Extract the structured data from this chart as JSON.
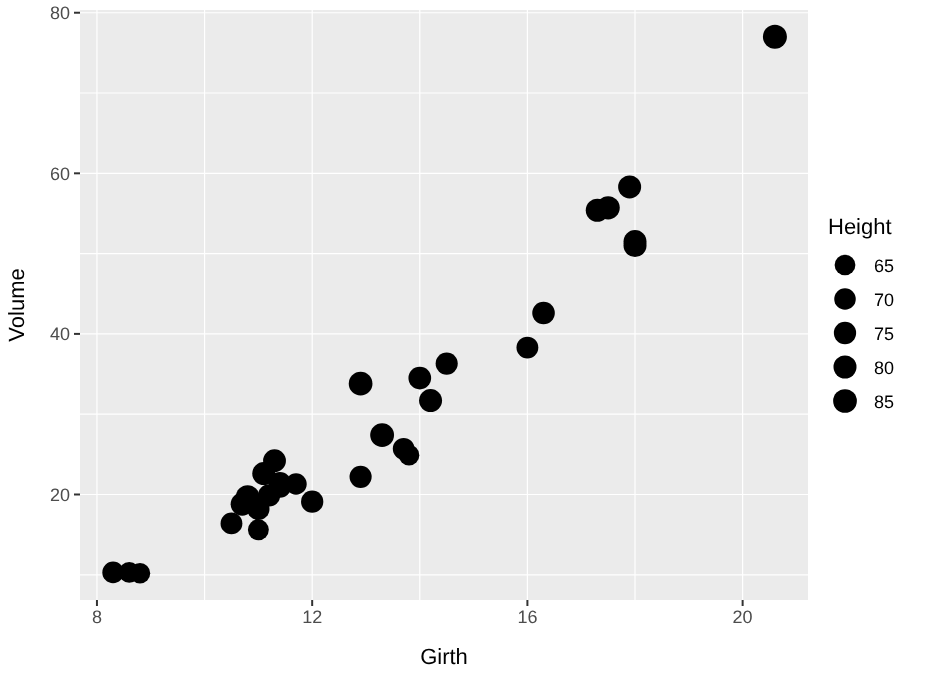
{
  "chart_data": {
    "type": "bubble",
    "xlabel": "Girth",
    "ylabel": "Volume",
    "legend_title": "Height",
    "grid": true,
    "marker": "circle",
    "xlim": [
      7.685,
      21.215
    ],
    "xticks": [
      8,
      12,
      16,
      20
    ],
    "ylim": [
      6.86,
      80.34
    ],
    "yticks": [
      20,
      40,
      60,
      80
    ],
    "size_legend": [
      65,
      70,
      75,
      80,
      85
    ],
    "series": [
      {
        "color": "#000000",
        "x": [
          8.3,
          8.6,
          8.8,
          10.5,
          10.7,
          10.8,
          11.0,
          11.0,
          11.1,
          11.2,
          11.3,
          11.4,
          11.4,
          11.7,
          12.0,
          12.9,
          12.9,
          13.3,
          13.7,
          13.8,
          14.0,
          14.2,
          14.5,
          16.0,
          16.3,
          17.3,
          17.5,
          17.9,
          18.0,
          18.0,
          20.6
        ],
        "values": [
          10.3,
          10.3,
          10.2,
          16.4,
          18.8,
          19.7,
          15.6,
          18.2,
          22.6,
          19.9,
          24.2,
          21.0,
          21.4,
          21.3,
          19.1,
          22.2,
          33.8,
          27.4,
          25.7,
          24.9,
          34.5,
          31.7,
          36.3,
          38.3,
          42.6,
          55.4,
          55.7,
          58.3,
          51.5,
          51.0,
          77.0
        ],
        "sizes": [
          70,
          65,
          63,
          72,
          81,
          83,
          66,
          75,
          80,
          75,
          79,
          76,
          76,
          69,
          75,
          74,
          85,
          86,
          71,
          64,
          78,
          80,
          74,
          72,
          77,
          81,
          82,
          80,
          80,
          80,
          87
        ]
      }
    ]
  }
}
